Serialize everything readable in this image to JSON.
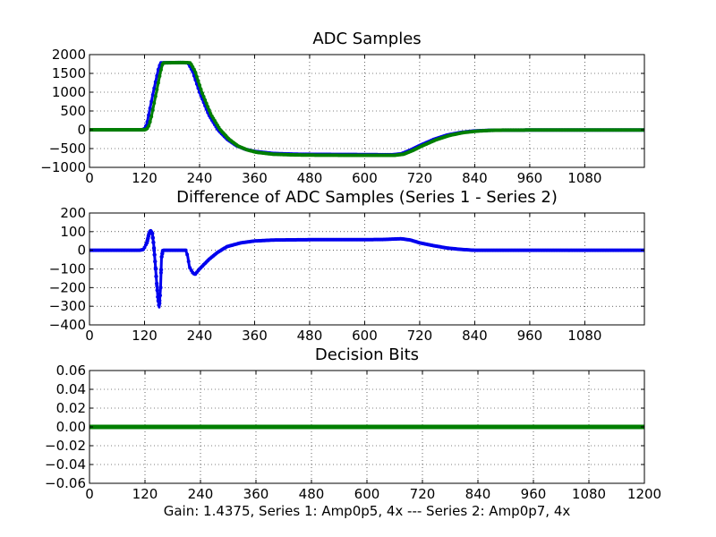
{
  "colors": {
    "series1": "#0000ee",
    "series2": "#007f00",
    "diff": "#0000ee",
    "decision": "#007f00",
    "background": "#ffffff",
    "frame": "#000000"
  },
  "figure": {
    "xlabel": "Gain: 1.4375, Series 1: Amp0p5, 4x --- Series 2: Amp0p7, 4x"
  },
  "chart_data": [
    {
      "type": "line",
      "title": "ADC Samples",
      "xlim": [
        0,
        1210
      ],
      "ylim": [
        -1000,
        2000
      ],
      "xticks": [
        0,
        120,
        240,
        360,
        480,
        600,
        720,
        840,
        960,
        1080
      ],
      "yticks": [
        -1000,
        -500,
        0,
        500,
        1000,
        1500,
        2000
      ],
      "grid": true,
      "series": [
        {
          "name": "Series 1",
          "color": "#0000ee",
          "points": [
            [
              0,
              0
            ],
            [
              115,
              0
            ],
            [
              120,
              30
            ],
            [
              125,
              150
            ],
            [
              130,
              450
            ],
            [
              140,
              1050
            ],
            [
              150,
              1600
            ],
            [
              155,
              1780
            ],
            [
              200,
              1790
            ],
            [
              215,
              1780
            ],
            [
              225,
              1550
            ],
            [
              240,
              1000
            ],
            [
              260,
              400
            ],
            [
              280,
              0
            ],
            [
              300,
              -250
            ],
            [
              320,
              -420
            ],
            [
              340,
              -520
            ],
            [
              360,
              -575
            ],
            [
              400,
              -630
            ],
            [
              450,
              -650
            ],
            [
              500,
              -655
            ],
            [
              600,
              -660
            ],
            [
              660,
              -665
            ],
            [
              680,
              -640
            ],
            [
              700,
              -540
            ],
            [
              720,
              -420
            ],
            [
              750,
              -260
            ],
            [
              780,
              -140
            ],
            [
              810,
              -70
            ],
            [
              840,
              -30
            ],
            [
              870,
              -15
            ],
            [
              900,
              -10
            ],
            [
              1000,
              -5
            ],
            [
              1210,
              -5
            ]
          ]
        },
        {
          "name": "Series 2",
          "color": "#007f00",
          "points": [
            [
              0,
              0
            ],
            [
              120,
              0
            ],
            [
              125,
              20
            ],
            [
              130,
              120
            ],
            [
              135,
              350
            ],
            [
              145,
              950
            ],
            [
              155,
              1550
            ],
            [
              160,
              1780
            ],
            [
              205,
              1790
            ],
            [
              220,
              1780
            ],
            [
              230,
              1560
            ],
            [
              245,
              1000
            ],
            [
              265,
              400
            ],
            [
              285,
              0
            ],
            [
              305,
              -260
            ],
            [
              325,
              -440
            ],
            [
              345,
              -540
            ],
            [
              365,
              -600
            ],
            [
              400,
              -650
            ],
            [
              450,
              -670
            ],
            [
              500,
              -675
            ],
            [
              600,
              -680
            ],
            [
              665,
              -680
            ],
            [
              685,
              -650
            ],
            [
              705,
              -550
            ],
            [
              725,
              -430
            ],
            [
              755,
              -270
            ],
            [
              785,
              -150
            ],
            [
              815,
              -75
            ],
            [
              845,
              -35
            ],
            [
              875,
              -15
            ],
            [
              900,
              -10
            ],
            [
              1000,
              -5
            ],
            [
              1210,
              -5
            ]
          ]
        }
      ]
    },
    {
      "type": "line",
      "title": "Difference of ADC Samples (Series 1 - Series 2)",
      "xlim": [
        0,
        1210
      ],
      "ylim": [
        -400,
        200
      ],
      "xticks": [
        0,
        120,
        240,
        360,
        480,
        600,
        720,
        840,
        960,
        1080
      ],
      "yticks": [
        -400,
        -300,
        -200,
        -100,
        0,
        100,
        200
      ],
      "grid": true,
      "series": [
        {
          "name": "Series 1 - Series 2",
          "color": "#0000ee",
          "points": [
            [
              0,
              0
            ],
            [
              110,
              0
            ],
            [
              118,
              5
            ],
            [
              125,
              40
            ],
            [
              130,
              90
            ],
            [
              133,
              105
            ],
            [
              137,
              90
            ],
            [
              140,
              30
            ],
            [
              143,
              -60
            ],
            [
              146,
              -160
            ],
            [
              149,
              -250
            ],
            [
              152,
              -305
            ],
            [
              155,
              -200
            ],
            [
              157,
              -40
            ],
            [
              160,
              0
            ],
            [
              210,
              0
            ],
            [
              214,
              -30
            ],
            [
              218,
              -90
            ],
            [
              225,
              -120
            ],
            [
              230,
              -130
            ],
            [
              240,
              -100
            ],
            [
              260,
              -50
            ],
            [
              280,
              -10
            ],
            [
              300,
              20
            ],
            [
              330,
              40
            ],
            [
              360,
              50
            ],
            [
              400,
              55
            ],
            [
              480,
              57
            ],
            [
              600,
              57
            ],
            [
              640,
              58
            ],
            [
              680,
              62
            ],
            [
              700,
              55
            ],
            [
              720,
              40
            ],
            [
              750,
              25
            ],
            [
              780,
              12
            ],
            [
              810,
              5
            ],
            [
              840,
              0
            ],
            [
              1210,
              0
            ]
          ]
        }
      ]
    },
    {
      "type": "line",
      "title": "Decision Bits",
      "xlim": [
        0,
        1200
      ],
      "ylim": [
        -0.06,
        0.06
      ],
      "xticks": [
        0,
        120,
        240,
        360,
        480,
        600,
        720,
        840,
        960,
        1080,
        1200
      ],
      "yticks": [
        -0.06,
        -0.04,
        -0.02,
        0.0,
        0.02,
        0.04,
        0.06
      ],
      "grid": true,
      "series": [
        {
          "name": "Decision Bits",
          "color": "#007f00",
          "points": [
            [
              0,
              0
            ],
            [
              1200,
              0
            ]
          ]
        }
      ]
    }
  ]
}
